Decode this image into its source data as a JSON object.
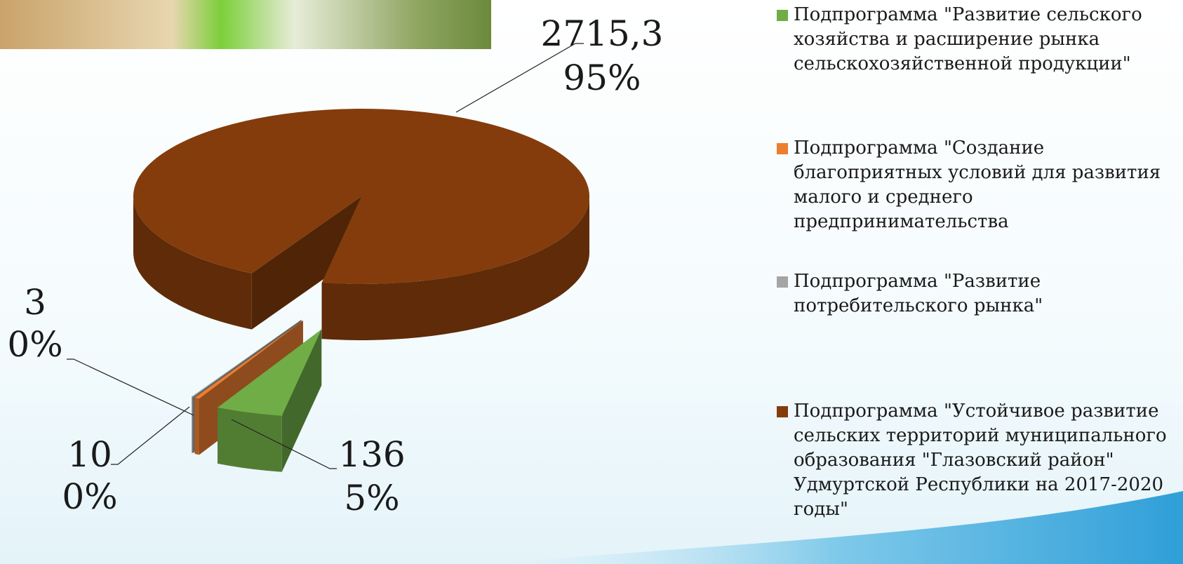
{
  "chart_data": {
    "type": "pie3d",
    "categories": [
      "Подпрограмма \"Развитие сельского хозяйства и расширение рынка сельскохозяйственной продукции\"",
      "Подпрограмма \"Создание благоприятных условий для развития малого и среднего предпринимательства",
      "Подпрограмма \"Развитие потребительского рынка\"",
      "Подпрограмма \"Устойчивое развитие сельских территорий муниципального образования \"Глазовский район\" Удмуртской Республики на 2017-2020 годы\""
    ],
    "values": [
      136,
      10,
      3,
      2715.3
    ],
    "value_labels": [
      "136",
      "10",
      "3",
      "2715,3"
    ],
    "percents": [
      5,
      0,
      0,
      95
    ],
    "percent_labels": [
      "5%",
      "0%",
      "0%",
      "95%"
    ],
    "colors": [
      "#70ad47",
      "#ed7d31",
      "#a5a5a5",
      "#843c0c"
    ],
    "legend": "right"
  }
}
